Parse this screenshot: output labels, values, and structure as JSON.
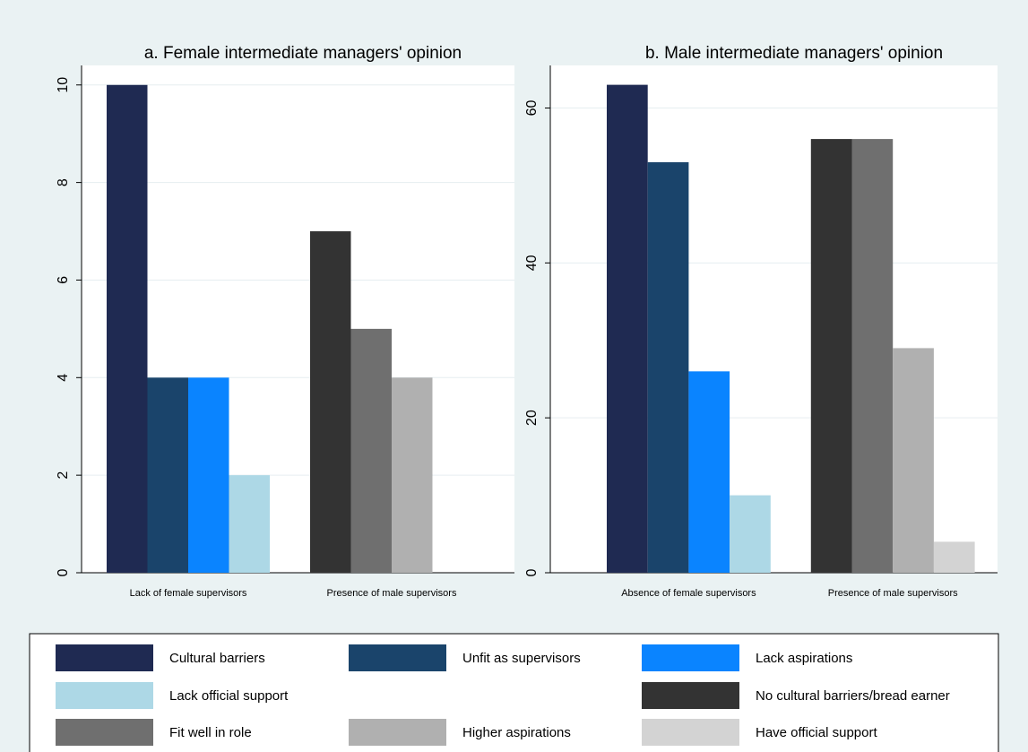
{
  "chart_data": [
    {
      "type": "bar",
      "title": "a. Female intermediate managers' opinion",
      "xlabel": "",
      "ylabel": "",
      "ylim": [
        0,
        10.4
      ],
      "yticks": [
        0,
        2,
        4,
        6,
        8,
        10
      ],
      "grid": true,
      "categories": [
        "Lack of female supervisors",
        "Presence of male supervisors"
      ],
      "groups": [
        {
          "category": "Lack of female supervisors",
          "bars": [
            {
              "series": "Cultural barriers",
              "value": 10
            },
            {
              "series": "Unfit as supervisors",
              "value": 4
            },
            {
              "series": "Lack aspirations",
              "value": 4
            },
            {
              "series": "Lack official support",
              "value": 2
            }
          ]
        },
        {
          "category": "Presence of male supervisors",
          "bars": [
            {
              "series": "No cultural barriers/bread earner",
              "value": 7
            },
            {
              "series": "Fit well in role",
              "value": 5
            },
            {
              "series": "Higher aspirations",
              "value": 4
            },
            {
              "series": "Have official support",
              "value": 0
            }
          ]
        }
      ]
    },
    {
      "type": "bar",
      "title": "b. Male intermediate managers' opinion",
      "xlabel": "",
      "ylabel": "",
      "ylim": [
        0,
        65.5
      ],
      "yticks": [
        0,
        20,
        40,
        60
      ],
      "grid": true,
      "categories": [
        "Absence of female supervisors",
        "Presence of male supervisors"
      ],
      "groups": [
        {
          "category": "Absence of female supervisors",
          "bars": [
            {
              "series": "Cultural barriers",
              "value": 63
            },
            {
              "series": "Unfit as supervisors",
              "value": 53
            },
            {
              "series": "Lack aspirations",
              "value": 26
            },
            {
              "series": "Lack official support",
              "value": 10
            }
          ]
        },
        {
          "category": "Presence of male supervisors",
          "bars": [
            {
              "series": "No cultural barriers/bread earner",
              "value": 56
            },
            {
              "series": "Fit well in role",
              "value": 56
            },
            {
              "series": "Higher aspirations",
              "value": 29
            },
            {
              "series": "Have official support",
              "value": 4
            }
          ]
        }
      ]
    }
  ],
  "legend": {
    "placement": "bottom",
    "items": [
      {
        "label": "Cultural barriers",
        "color": "#1f2a52"
      },
      {
        "label": "Unfit as supervisors",
        "color": "#1a446b"
      },
      {
        "label": "Lack aspirations",
        "color": "#0a84ff"
      },
      {
        "label": "Lack official support",
        "color": "#add8e6"
      },
      {
        "label": "No cultural barriers/bread earner",
        "color": "#333333"
      },
      {
        "label": "Fit well in role",
        "color": "#6f6f6f"
      },
      {
        "label": "Higher aspirations",
        "color": "#b0b0b0"
      },
      {
        "label": "Have official support",
        "color": "#d3d3d3"
      }
    ]
  }
}
